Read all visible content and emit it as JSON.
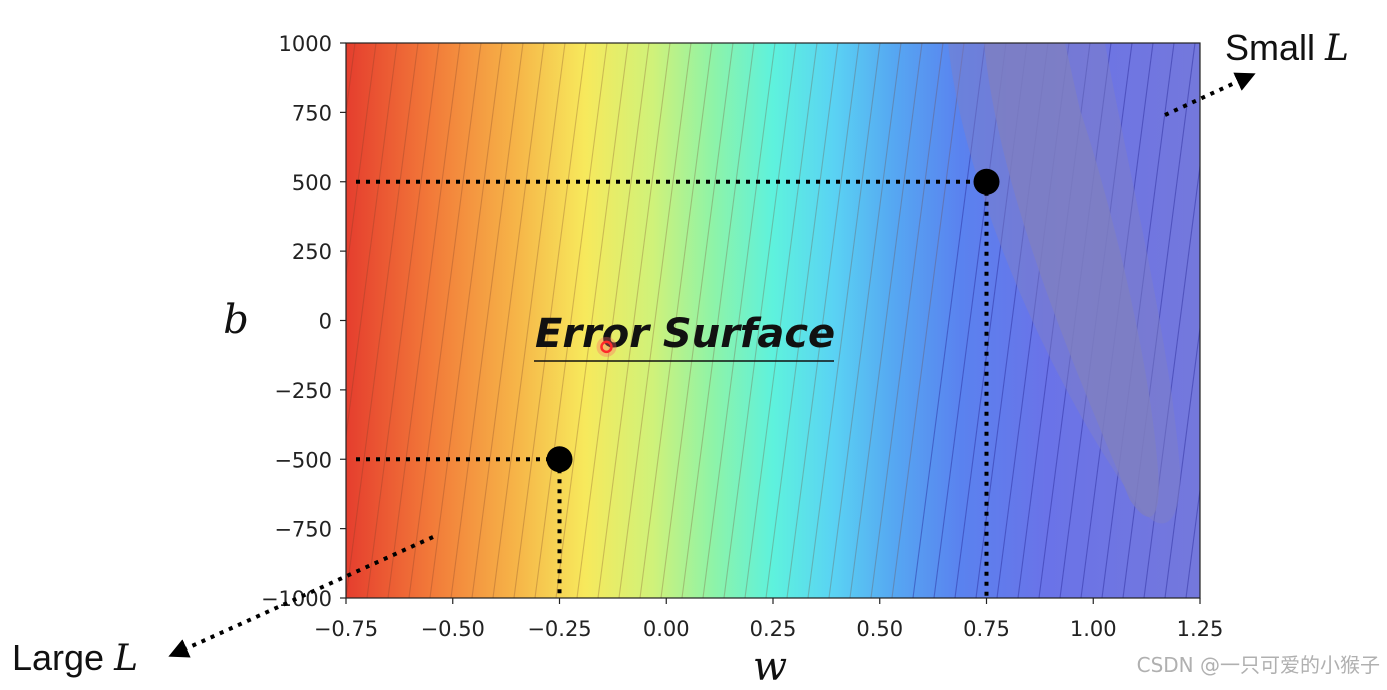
{
  "chart_data": {
    "type": "heatmap",
    "title": "Error Surface",
    "xlabel": "w",
    "ylabel": "b",
    "xlim": [
      -0.75,
      1.25
    ],
    "ylim": [
      -1000,
      1000
    ],
    "x_ticks": [
      "−0.75",
      "−0.50",
      "−0.25",
      "0.00",
      "0.25",
      "0.50",
      "0.75",
      "1.00",
      "1.25"
    ],
    "y_ticks": [
      "1000",
      "750",
      "500",
      "250",
      "0",
      "−250",
      "−500",
      "−750",
      "−1000"
    ],
    "colormap": "jet (red = large loss, blue = small loss)",
    "grid": false,
    "points": [
      {
        "name": "point-low",
        "w": -0.25,
        "b": -500
      },
      {
        "name": "point-high",
        "w": 0.75,
        "b": 500
      }
    ],
    "highlight_point": {
      "w": -0.14,
      "b": -95
    },
    "annotations": [
      {
        "prefix": "Small ",
        "symbol": "L",
        "position": "top-right"
      },
      {
        "prefix": "Large ",
        "symbol": "L",
        "position": "bottom-left"
      }
    ]
  },
  "watermark": "CSDN @一只可爱的小猴子",
  "colors": {
    "high_loss": "#e03a2a",
    "low_loss": "#6f73e6",
    "minimum_region": "#7f7fc0",
    "marker": "#000000",
    "highlight": "#ff3333"
  }
}
